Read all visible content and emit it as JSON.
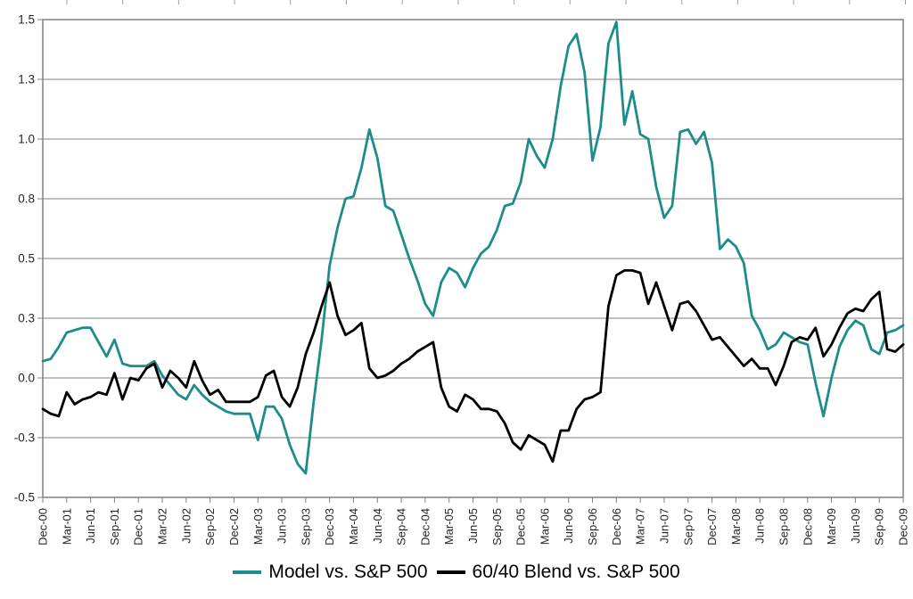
{
  "chart_data": {
    "type": "line",
    "title": "",
    "xlabel": "",
    "ylabel": "",
    "x_start": "Dec-00",
    "x_end": "Dec-09",
    "x_interval": "monthly",
    "grid": "horizontal",
    "legend_position": "bottom",
    "x_tick_every_n_points": 3,
    "x_tick_labels": [
      "Dec-00",
      "Mar-01",
      "Jun-01",
      "Sep-01",
      "Dec-01",
      "Mar-02",
      "Jun-02",
      "Sep-02",
      "Dec-02",
      "Mar-03",
      "Jun-03",
      "Sep-03",
      "Dec-03",
      "Mar-04",
      "Jun-04",
      "Sep-04",
      "Dec-04",
      "Mar-05",
      "Jun-05",
      "Sep-05",
      "Dec-05",
      "Mar-06",
      "Jun-06",
      "Sep-06",
      "Dec-06",
      "Mar-07",
      "Jun-07",
      "Sep-07",
      "Dec-07",
      "Mar-08",
      "Jun-08",
      "Sep-08",
      "Dec-08",
      "Mar-09",
      "Jun-09",
      "Sep-09",
      "Dec-09"
    ],
    "y_axis": {
      "range": [
        -0.5,
        1.5
      ],
      "ticks": [
        {
          "label": "1.5",
          "value": 1.5
        },
        {
          "label": "1.3",
          "value": 1.25
        },
        {
          "label": "1.0",
          "value": 1.0
        },
        {
          "label": "0.8",
          "value": 0.75
        },
        {
          "label": "0.5",
          "value": 0.5
        },
        {
          "label": "0.3",
          "value": 0.25
        },
        {
          "label": "0.0",
          "value": 0.0
        },
        {
          "label": "-0.3",
          "value": -0.25
        },
        {
          "label": "-0.5",
          "value": -0.5
        }
      ]
    },
    "series": [
      {
        "name": "Model vs. S&P 500",
        "color": "#1e8c8c",
        "values": [
          0.07,
          0.08,
          0.13,
          0.19,
          0.2,
          0.21,
          0.21,
          0.15,
          0.09,
          0.16,
          0.06,
          0.05,
          0.05,
          0.05,
          0.07,
          0.01,
          -0.03,
          -0.07,
          -0.09,
          -0.03,
          -0.07,
          -0.1,
          -0.12,
          -0.14,
          -0.15,
          -0.15,
          -0.15,
          -0.26,
          -0.12,
          -0.12,
          -0.17,
          -0.28,
          -0.36,
          -0.4,
          -0.1,
          0.16,
          0.47,
          0.63,
          0.75,
          0.76,
          0.88,
          1.04,
          0.92,
          0.72,
          0.7,
          0.6,
          0.5,
          0.41,
          0.31,
          0.26,
          0.4,
          0.46,
          0.44,
          0.38,
          0.46,
          0.52,
          0.55,
          0.62,
          0.72,
          0.73,
          0.82,
          1.0,
          0.93,
          0.88,
          1.0,
          1.22,
          1.39,
          1.44,
          1.28,
          0.91,
          1.05,
          1.4,
          1.49,
          1.06,
          1.2,
          1.02,
          1.0,
          0.8,
          0.67,
          0.72,
          1.03,
          1.04,
          0.98,
          1.03,
          0.9,
          0.54,
          0.58,
          0.55,
          0.48,
          0.26,
          0.2,
          0.12,
          0.14,
          0.19,
          0.17,
          0.15,
          0.14,
          -0.02,
          -0.16,
          0.0,
          0.13,
          0.2,
          0.24,
          0.22,
          0.12,
          0.1,
          0.19,
          0.2,
          0.22
        ]
      },
      {
        "name": "60/40 Blend vs. S&P 500",
        "color": "#000000",
        "values": [
          -0.13,
          -0.15,
          -0.16,
          -0.06,
          -0.11,
          -0.09,
          -0.08,
          -0.06,
          -0.07,
          0.02,
          -0.09,
          0.0,
          -0.01,
          0.04,
          0.06,
          -0.04,
          0.03,
          0.0,
          -0.04,
          0.07,
          -0.01,
          -0.07,
          -0.05,
          -0.1,
          -0.1,
          -0.1,
          -0.1,
          -0.08,
          0.01,
          0.03,
          -0.08,
          -0.12,
          -0.04,
          0.1,
          0.19,
          0.3,
          0.4,
          0.26,
          0.18,
          0.2,
          0.23,
          0.04,
          0.0,
          0.01,
          0.03,
          0.06,
          0.08,
          0.11,
          0.13,
          0.15,
          -0.04,
          -0.12,
          -0.14,
          -0.07,
          -0.09,
          -0.13,
          -0.13,
          -0.14,
          -0.19,
          -0.27,
          -0.3,
          -0.24,
          -0.26,
          -0.28,
          -0.35,
          -0.22,
          -0.22,
          -0.13,
          -0.09,
          -0.08,
          -0.06,
          0.3,
          0.43,
          0.45,
          0.45,
          0.44,
          0.31,
          0.4,
          0.3,
          0.2,
          0.31,
          0.32,
          0.28,
          0.22,
          0.16,
          0.17,
          0.13,
          0.09,
          0.05,
          0.08,
          0.04,
          0.04,
          -0.03,
          0.05,
          0.15,
          0.17,
          0.16,
          0.21,
          0.09,
          0.14,
          0.21,
          0.27,
          0.29,
          0.28,
          0.33,
          0.36,
          0.12,
          0.11,
          0.14
        ]
      }
    ]
  }
}
